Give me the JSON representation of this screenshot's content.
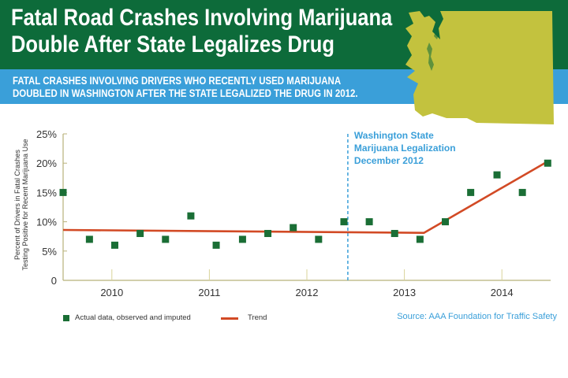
{
  "header": {
    "title_line1": "Fatal Road Crashes Involving Marijuana",
    "title_line2": "Double After State Legalizes Drug",
    "subtitle_line1": "FATAL CRASHES INVOLVING DRIVERS WHO RECENTLY USED MARIJUANA",
    "subtitle_line2": "DOUBLED IN WASHINGTON AFTER THE STATE LEGALIZED THE DRUG IN 2012.",
    "bg_color": "#0d6b3a",
    "subbar_color": "#3a9fd9",
    "map_color": "#c3c23e"
  },
  "chart_data": {
    "type": "scatter",
    "xlim": [
      2009.5,
      2014.5
    ],
    "ylim": [
      0,
      25
    ],
    "ylabel_line1": "Percent of Drivers in Fatal Crashes",
    "ylabel_line2": "Testing Positive for Recent Marijuana Use",
    "y_ticks": [
      {
        "value": 0,
        "label": "0"
      },
      {
        "value": 5,
        "label": "5%"
      },
      {
        "value": 10,
        "label": "10%"
      },
      {
        "value": 15,
        "label": "15%"
      },
      {
        "value": 20,
        "label": "20%"
      },
      {
        "value": 25,
        "label": "25%"
      }
    ],
    "x_tick_labels": [
      {
        "value": 2010,
        "label": "2010"
      },
      {
        "value": 2011,
        "label": "2011"
      },
      {
        "value": 2012,
        "label": "2012"
      },
      {
        "value": 2013,
        "label": "2013"
      },
      {
        "value": 2014,
        "label": "2014"
      }
    ],
    "year_boundaries": [
      2010,
      2011,
      2012,
      2013,
      2014
    ],
    "series": [
      {
        "name": "Actual data, observed and imputed",
        "color": "#1a6e35",
        "points": [
          [
            2009.5,
            15
          ],
          [
            2009.77,
            7
          ],
          [
            2010.03,
            6
          ],
          [
            2010.29,
            8
          ],
          [
            2010.55,
            7
          ],
          [
            2010.81,
            11
          ],
          [
            2011.07,
            6
          ],
          [
            2011.34,
            7
          ],
          [
            2011.6,
            8
          ],
          [
            2011.86,
            9
          ],
          [
            2012.12,
            7
          ],
          [
            2012.38,
            10
          ],
          [
            2012.64,
            10
          ],
          [
            2012.9,
            8
          ],
          [
            2013.16,
            7
          ],
          [
            2013.42,
            10
          ],
          [
            2013.68,
            15
          ],
          [
            2013.95,
            18
          ],
          [
            2014.21,
            15
          ],
          [
            2014.47,
            20
          ]
        ]
      },
      {
        "name": "Trend",
        "color": "#d24a25",
        "points": [
          [
            2009.5,
            8.6
          ],
          [
            2013.2,
            8.1
          ],
          [
            2014.47,
            20.3
          ]
        ]
      }
    ],
    "annotation": {
      "x": 2012.42,
      "line1": "Washington State",
      "line2": "Marijuana Legalization",
      "line3": "December 2012",
      "color": "#3a9fd9"
    },
    "legend_position": "bottom-left",
    "grid": false
  },
  "legend": {
    "marker_label": "Actual data, observed and imputed",
    "line_label": "Trend"
  },
  "source": "Source: AAA Foundation for Traffic Safety"
}
